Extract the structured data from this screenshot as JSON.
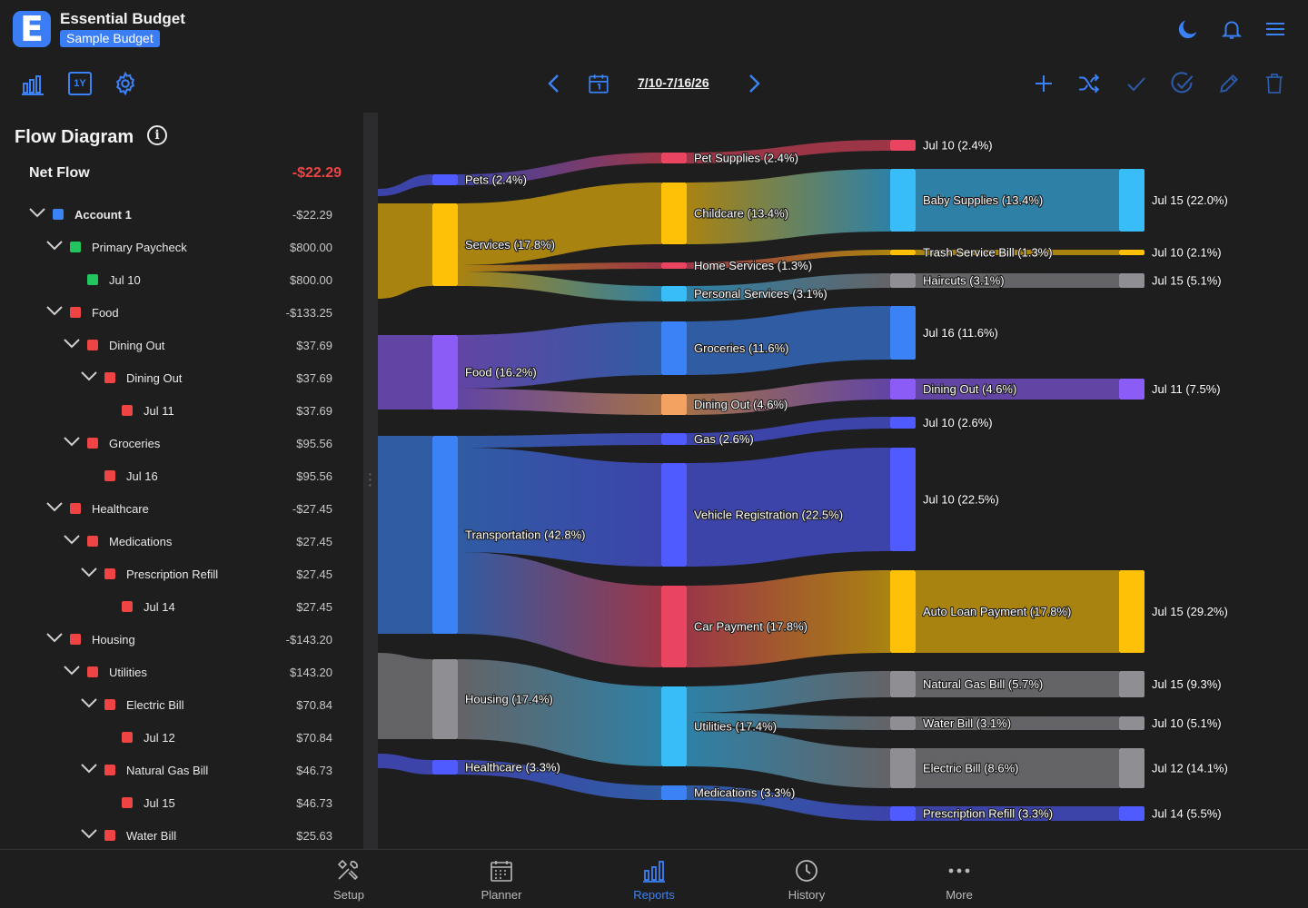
{
  "app": {
    "name": "Essential Budget",
    "logo_letter": "E",
    "budget_badge": "Sample Budget"
  },
  "toolbar": {
    "date_range": "7/10-7/16/26",
    "year_label": "1Y"
  },
  "panel": {
    "title": "Flow Diagram",
    "net_flow_label": "Net Flow",
    "net_flow_value": "-$22.29",
    "rows": [
      {
        "label": "Account 1",
        "amount": "-$22.29",
        "depth": 0,
        "chevron": true,
        "color": "#3b82f6",
        "bold": true
      },
      {
        "label": "Primary Paycheck",
        "amount": "$800.00",
        "depth": 1,
        "chevron": true,
        "color": "#22c55e"
      },
      {
        "label": "Jul 10",
        "amount": "$800.00",
        "depth": 2,
        "chevron": false,
        "color": "#22c55e"
      },
      {
        "label": "Food",
        "amount": "-$133.25",
        "depth": 1,
        "chevron": true,
        "color": "#ef4444"
      },
      {
        "label": "Dining Out",
        "amount": "$37.69",
        "depth": 2,
        "chevron": true,
        "color": "#ef4444"
      },
      {
        "label": "Dining Out",
        "amount": "$37.69",
        "depth": 3,
        "chevron": true,
        "color": "#ef4444"
      },
      {
        "label": "Jul 11",
        "amount": "$37.69",
        "depth": 4,
        "chevron": false,
        "color": "#ef4444"
      },
      {
        "label": "Groceries",
        "amount": "$95.56",
        "depth": 2,
        "chevron": true,
        "color": "#ef4444"
      },
      {
        "label": "Jul 16",
        "amount": "$95.56",
        "depth": 3,
        "chevron": false,
        "color": "#ef4444"
      },
      {
        "label": "Healthcare",
        "amount": "-$27.45",
        "depth": 1,
        "chevron": true,
        "color": "#ef4444"
      },
      {
        "label": "Medications",
        "amount": "$27.45",
        "depth": 2,
        "chevron": true,
        "color": "#ef4444"
      },
      {
        "label": "Prescription Refill",
        "amount": "$27.45",
        "depth": 3,
        "chevron": true,
        "color": "#ef4444"
      },
      {
        "label": "Jul 14",
        "amount": "$27.45",
        "depth": 4,
        "chevron": false,
        "color": "#ef4444"
      },
      {
        "label": "Housing",
        "amount": "-$143.20",
        "depth": 1,
        "chevron": true,
        "color": "#ef4444"
      },
      {
        "label": "Utilities",
        "amount": "$143.20",
        "depth": 2,
        "chevron": true,
        "color": "#ef4444"
      },
      {
        "label": "Electric Bill",
        "amount": "$70.84",
        "depth": 3,
        "chevron": true,
        "color": "#ef4444"
      },
      {
        "label": "Jul 12",
        "amount": "$70.84",
        "depth": 4,
        "chevron": false,
        "color": "#ef4444"
      },
      {
        "label": "Natural Gas Bill",
        "amount": "$46.73",
        "depth": 3,
        "chevron": true,
        "color": "#ef4444"
      },
      {
        "label": "Jul 15",
        "amount": "$46.73",
        "depth": 4,
        "chevron": false,
        "color": "#ef4444"
      },
      {
        "label": "Water Bill",
        "amount": "$25.63",
        "depth": 3,
        "chevron": true,
        "color": "#ef4444"
      }
    ]
  },
  "flow": {
    "nodes": [
      {
        "id": "pets",
        "label": "Pets (2.4%)",
        "color": "#4f5bff"
      },
      {
        "id": "services",
        "label": "Services (17.8%)",
        "color": "#ffc107"
      },
      {
        "id": "food",
        "label": "Food (16.2%)",
        "color": "#8b5cf6"
      },
      {
        "id": "transport",
        "label": "Transportation (42.8%)",
        "color": "#3b82f6"
      },
      {
        "id": "housing",
        "label": "Housing (17.4%)",
        "color": "#8e8e93"
      },
      {
        "id": "healthcare",
        "label": "Healthcare (3.3%)",
        "color": "#4f5bff"
      },
      {
        "id": "petsup",
        "label": "Pet Supplies (2.4%)",
        "color": "#e94560"
      },
      {
        "id": "childcare",
        "label": "Childcare (13.4%)",
        "color": "#ffc107"
      },
      {
        "id": "homesvc",
        "label": "Home Services (1.3%)",
        "color": "#e94560"
      },
      {
        "id": "personal",
        "label": "Personal Services (3.1%)",
        "color": "#38bdf8"
      },
      {
        "id": "groceries",
        "label": "Groceries (11.6%)",
        "color": "#3b82f6"
      },
      {
        "id": "dining",
        "label": "Dining Out (4.6%)",
        "color": "#f4a261"
      },
      {
        "id": "gas",
        "label": "Gas (2.6%)",
        "color": "#4f5bff"
      },
      {
        "id": "vehreg",
        "label": "Vehicle Registration (22.5%)",
        "color": "#4f5bff"
      },
      {
        "id": "carpay",
        "label": "Car Payment (17.8%)",
        "color": "#e94560"
      },
      {
        "id": "utilities",
        "label": "Utilities (17.4%)",
        "color": "#38bdf8"
      },
      {
        "id": "medications",
        "label": "Medications (3.3%)",
        "color": "#3b82f6"
      },
      {
        "id": "n_jul10a",
        "label": "Jul 10 (2.4%)",
        "color": "#e94560"
      },
      {
        "id": "babysup",
        "label": "Baby Supplies (13.4%)",
        "color": "#38bdf8"
      },
      {
        "id": "trash",
        "label": "Trash Service Bill (1.3%)",
        "color": "#ffc107"
      },
      {
        "id": "haircuts",
        "label": "Haircuts (3.1%)",
        "color": "#8e8e93"
      },
      {
        "id": "n_jul16",
        "label": "Jul 16 (11.6%)",
        "color": "#3b82f6"
      },
      {
        "id": "dining2",
        "label": "Dining Out (4.6%)",
        "color": "#8b5cf6"
      },
      {
        "id": "n_jul10b",
        "label": "Jul 10 (2.6%)",
        "color": "#4f5bff"
      },
      {
        "id": "n_jul10c",
        "label": "Jul 10 (22.5%)",
        "color": "#4f5bff"
      },
      {
        "id": "autoloan",
        "label": "Auto Loan Payment (17.8%)",
        "color": "#ffc107"
      },
      {
        "id": "natgas",
        "label": "Natural Gas Bill (5.7%)",
        "color": "#8e8e93"
      },
      {
        "id": "water",
        "label": "Water Bill (3.1%)",
        "color": "#8e8e93"
      },
      {
        "id": "electric",
        "label": "Electric Bill (8.6%)",
        "color": "#8e8e93"
      },
      {
        "id": "prescription",
        "label": "Prescription Refill (3.3%)",
        "color": "#4f5bff"
      },
      {
        "id": "n_jul15a",
        "label": "Jul 15 (22.0%)",
        "color": "#38bdf8"
      },
      {
        "id": "n_jul10d",
        "label": "Jul 10 (2.1%)",
        "color": "#ffc107"
      },
      {
        "id": "n_jul15b",
        "label": "Jul 15 (5.1%)",
        "color": "#8e8e93"
      },
      {
        "id": "n_jul11",
        "label": "Jul 11 (7.5%)",
        "color": "#8b5cf6"
      },
      {
        "id": "n_jul15c",
        "label": "Jul 15 (29.2%)",
        "color": "#ffc107"
      },
      {
        "id": "n_jul15d",
        "label": "Jul 15 (9.3%)",
        "color": "#8e8e93"
      },
      {
        "id": "n_jul10e",
        "label": "Jul 10 (5.1%)",
        "color": "#8e8e93"
      },
      {
        "id": "n_jul12",
        "label": "Jul 12 (14.1%)",
        "color": "#8e8e93"
      },
      {
        "id": "n_jul14",
        "label": "Jul 14 (5.5%)",
        "color": "#4f5bff"
      }
    ]
  },
  "nav": {
    "tabs": [
      {
        "label": "Setup",
        "icon": "tools-icon"
      },
      {
        "label": "Planner",
        "icon": "calendar-grid-icon"
      },
      {
        "label": "Reports",
        "icon": "bar-chart-icon",
        "active": true
      },
      {
        "label": "History",
        "icon": "clock-icon"
      },
      {
        "label": "More",
        "icon": "more-dots-icon"
      }
    ]
  }
}
